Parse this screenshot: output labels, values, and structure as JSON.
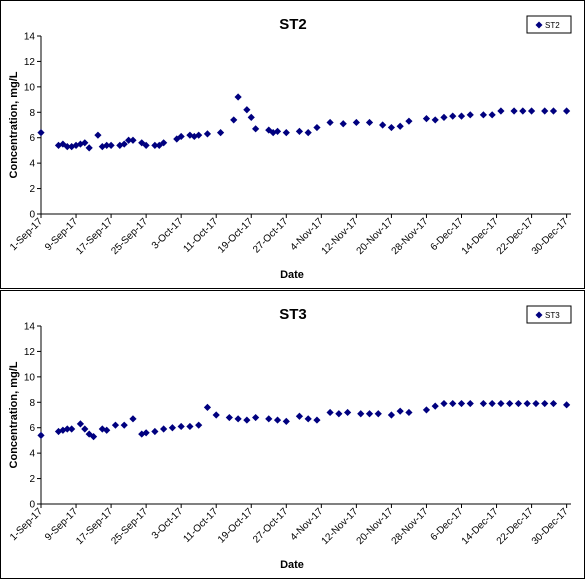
{
  "colors": {
    "marker": "#00007F",
    "axis": "#000000",
    "frame": "#000000",
    "background": "#FFFFFF"
  },
  "chart_data": [
    {
      "type": "scatter",
      "title": "ST2",
      "xlabel": "Date",
      "ylabel": "Concentration, mg/L",
      "ylim": [
        0,
        14
      ],
      "yticks": [
        0,
        2,
        4,
        6,
        8,
        10,
        12,
        14
      ],
      "xlim": [
        "2017-09-01",
        "2017-12-31"
      ],
      "xticks": [
        "1-Sep-17",
        "9-Sep-17",
        "17-Sep-17",
        "25-Sep-17",
        "3-Oct-17",
        "11-Oct-17",
        "19-Oct-17",
        "27-Oct-17",
        "4-Nov-17",
        "12-Nov-17",
        "20-Nov-17",
        "28-Nov-17",
        "6-Dec-17",
        "14-Dec-17",
        "22-Dec-17",
        "30-Dec-17"
      ],
      "legend": "top-right",
      "grid": false,
      "series": [
        {
          "name": "ST2",
          "marker": "diamond",
          "x": [
            "2017-09-01",
            "2017-09-05",
            "2017-09-06",
            "2017-09-07",
            "2017-09-08",
            "2017-09-09",
            "2017-09-10",
            "2017-09-11",
            "2017-09-12",
            "2017-09-14",
            "2017-09-15",
            "2017-09-16",
            "2017-09-17",
            "2017-09-19",
            "2017-09-20",
            "2017-09-21",
            "2017-09-22",
            "2017-09-24",
            "2017-09-25",
            "2017-09-27",
            "2017-09-28",
            "2017-09-29",
            "2017-10-02",
            "2017-10-03",
            "2017-10-05",
            "2017-10-06",
            "2017-10-07",
            "2017-10-09",
            "2017-10-12",
            "2017-10-15",
            "2017-10-16",
            "2017-10-18",
            "2017-10-19",
            "2017-10-20",
            "2017-10-23",
            "2017-10-24",
            "2017-10-25",
            "2017-10-27",
            "2017-10-30",
            "2017-11-01",
            "2017-11-03",
            "2017-11-06",
            "2017-11-09",
            "2017-11-12",
            "2017-11-15",
            "2017-11-18",
            "2017-11-20",
            "2017-11-22",
            "2017-11-24",
            "2017-11-28",
            "2017-11-30",
            "2017-12-02",
            "2017-12-04",
            "2017-12-06",
            "2017-12-08",
            "2017-12-11",
            "2017-12-13",
            "2017-12-15",
            "2017-12-18",
            "2017-12-20",
            "2017-12-22",
            "2017-12-25",
            "2017-12-27",
            "2017-12-30"
          ],
          "y": [
            6.4,
            5.4,
            5.5,
            5.3,
            5.3,
            5.4,
            5.5,
            5.6,
            5.2,
            6.2,
            5.3,
            5.4,
            5.4,
            5.4,
            5.5,
            5.8,
            5.8,
            5.6,
            5.4,
            5.4,
            5.4,
            5.6,
            5.9,
            6.1,
            6.2,
            6.1,
            6.2,
            6.3,
            6.4,
            7.4,
            9.2,
            8.2,
            7.6,
            6.7,
            6.6,
            6.4,
            6.5,
            6.4,
            6.5,
            6.4,
            6.8,
            7.2,
            7.1,
            7.2,
            7.2,
            7.0,
            6.8,
            6.9,
            7.3,
            7.5,
            7.4,
            7.6,
            7.7,
            7.7,
            7.8,
            7.8,
            7.8,
            8.1,
            8.1,
            8.1,
            8.1,
            8.1,
            8.1,
            8.1
          ]
        }
      ]
    },
    {
      "type": "scatter",
      "title": "ST3",
      "xlabel": "Date",
      "ylabel": "Concentration, mg/L",
      "ylim": [
        0,
        14
      ],
      "yticks": [
        0,
        2,
        4,
        6,
        8,
        10,
        12,
        14
      ],
      "xlim": [
        "2017-09-01",
        "2017-12-31"
      ],
      "xticks": [
        "1-Sep-17",
        "9-Sep-17",
        "17-Sep-17",
        "25-Sep-17",
        "3-Oct-17",
        "11-Oct-17",
        "19-Oct-17",
        "27-Oct-17",
        "4-Nov-17",
        "12-Nov-17",
        "20-Nov-17",
        "28-Nov-17",
        "6-Dec-17",
        "14-Dec-17",
        "22-Dec-17",
        "30-Dec-17"
      ],
      "legend": "top-right",
      "grid": false,
      "series": [
        {
          "name": "ST3",
          "marker": "diamond",
          "x": [
            "2017-09-01",
            "2017-09-05",
            "2017-09-06",
            "2017-09-07",
            "2017-09-08",
            "2017-09-10",
            "2017-09-11",
            "2017-09-12",
            "2017-09-13",
            "2017-09-15",
            "2017-09-16",
            "2017-09-18",
            "2017-09-20",
            "2017-09-22",
            "2017-09-24",
            "2017-09-25",
            "2017-09-27",
            "2017-09-29",
            "2017-10-01",
            "2017-10-03",
            "2017-10-05",
            "2017-10-07",
            "2017-10-09",
            "2017-10-11",
            "2017-10-14",
            "2017-10-16",
            "2017-10-18",
            "2017-10-20",
            "2017-10-23",
            "2017-10-25",
            "2017-10-27",
            "2017-10-30",
            "2017-11-01",
            "2017-11-03",
            "2017-11-06",
            "2017-11-08",
            "2017-11-10",
            "2017-11-13",
            "2017-11-15",
            "2017-11-17",
            "2017-11-20",
            "2017-11-22",
            "2017-11-24",
            "2017-11-28",
            "2017-11-30",
            "2017-12-02",
            "2017-12-04",
            "2017-12-06",
            "2017-12-08",
            "2017-12-11",
            "2017-12-13",
            "2017-12-15",
            "2017-12-17",
            "2017-12-19",
            "2017-12-21",
            "2017-12-23",
            "2017-12-25",
            "2017-12-27",
            "2017-12-30"
          ],
          "y": [
            5.4,
            5.7,
            5.8,
            5.9,
            5.9,
            6.3,
            5.9,
            5.5,
            5.3,
            5.9,
            5.8,
            6.2,
            6.2,
            6.7,
            5.5,
            5.6,
            5.7,
            5.9,
            6.0,
            6.1,
            6.1,
            6.2,
            7.6,
            7.0,
            6.8,
            6.7,
            6.6,
            6.8,
            6.7,
            6.6,
            6.5,
            6.9,
            6.7,
            6.6,
            7.2,
            7.1,
            7.2,
            7.1,
            7.1,
            7.1,
            7.0,
            7.3,
            7.2,
            7.4,
            7.7,
            7.9,
            7.9,
            7.9,
            7.9,
            7.9,
            7.9,
            7.9,
            7.9,
            7.9,
            7.9,
            7.9,
            7.9,
            7.9,
            7.8
          ]
        }
      ]
    }
  ]
}
